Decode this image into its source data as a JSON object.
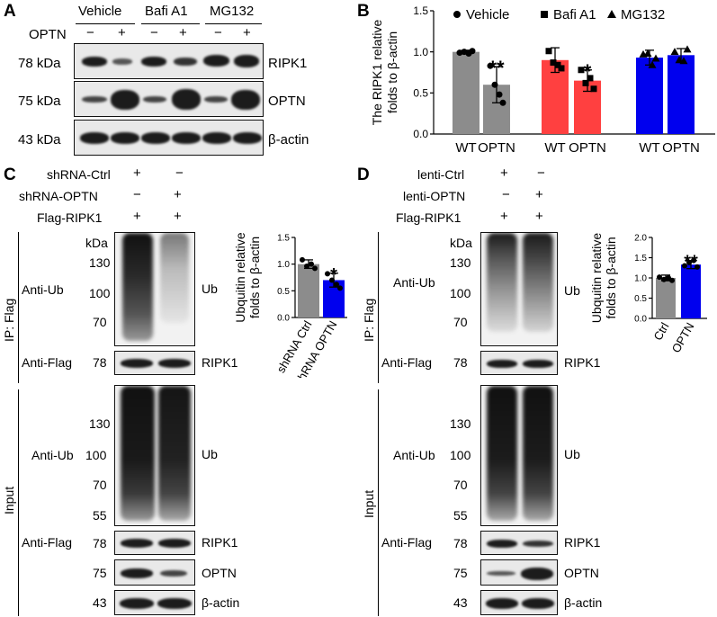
{
  "panels": {
    "A": "A",
    "B": "B",
    "C": "C",
    "D": "D"
  },
  "panelA": {
    "groups": [
      "Vehicle",
      "Bafi A1",
      "MG132"
    ],
    "optn_label": "OPTN",
    "signs": [
      "−",
      "+",
      "−",
      "+",
      "−",
      "+"
    ],
    "rows": [
      {
        "kda": "78 kDa",
        "protein": "RIPK1"
      },
      {
        "kda": "75 kDa",
        "protein": "OPTN"
      },
      {
        "kda": "43 kDa",
        "protein": "β-actin"
      }
    ]
  },
  "panelC": {
    "treatments": [
      {
        "label": "shRNA-Ctrl",
        "signs": [
          "+",
          "−"
        ]
      },
      {
        "label": "shRNA-OPTN",
        "signs": [
          "−",
          "+"
        ]
      },
      {
        "label": "Flag-RIPK1",
        "signs": [
          "+",
          "+"
        ]
      }
    ],
    "ip_label": "IP: Flag",
    "input_label": "Input",
    "kda": "kDa",
    "anti_ub": "Anti-Ub",
    "anti_flag": "Anti-Flag",
    "ip_markers": [
      "130",
      "100",
      "70"
    ],
    "input_markers": [
      "130",
      "100",
      "70",
      "55"
    ],
    "flag_marker": "78",
    "optn_marker": "75",
    "actin_marker": "43",
    "ub": "Ub",
    "ripk1": "RIPK1",
    "optn": "OPTN",
    "actin": "β-actin"
  },
  "panelD": {
    "treatments": [
      {
        "label": "lenti-Ctrl",
        "signs": [
          "+",
          "−"
        ]
      },
      {
        "label": "lenti-OPTN",
        "signs": [
          "−",
          "+"
        ]
      },
      {
        "label": "Flag-RIPK1",
        "signs": [
          "+",
          "+"
        ]
      }
    ],
    "ip_label": "IP: Flag",
    "input_label": "Input",
    "kda": "kDa",
    "anti_ub": "Anti-Ub",
    "anti_flag": "Anti-Flag",
    "ip_markers": [
      "130",
      "100",
      "70"
    ],
    "input_markers": [
      "130",
      "100",
      "70",
      "55"
    ],
    "flag_marker": "78",
    "optn_marker": "75",
    "actin_marker": "43",
    "ub": "Ub",
    "ripk1": "RIPK1",
    "optn": "OPTN",
    "actin": "β-actin"
  },
  "colors": {
    "gray": "#8c8c8c",
    "red": "#ff4040",
    "blue": "#0000ee"
  },
  "chart_data": [
    {
      "id": "B",
      "type": "bar",
      "ylabel": "The RIPK1  relative folds to β-actin",
      "ylim": [
        0,
        1.5
      ],
      "yticks": [
        "0.0",
        "0.5",
        "1.0",
        "1.5"
      ],
      "legend": [
        "Vehicle",
        "Bafi A1",
        "MG132"
      ],
      "legend_markers": [
        "circle",
        "square",
        "triangle"
      ],
      "categories": [
        "WT",
        "OPTN",
        "WT",
        "OPTN",
        "WT",
        "OPTN"
      ],
      "values": [
        1.0,
        0.6,
        0.9,
        0.65,
        0.93,
        0.96
      ],
      "errors": [
        0.02,
        0.22,
        0.15,
        0.13,
        0.09,
        0.08
      ],
      "bar_colors": [
        "#8c8c8c",
        "#8c8c8c",
        "#ff4040",
        "#ff4040",
        "#0000ee",
        "#0000ee"
      ],
      "markers": [
        "circle",
        "circle",
        "square",
        "square",
        "triangle",
        "triangle"
      ],
      "points": [
        [
          0.99,
          1.0,
          0.98,
          1.01
        ],
        [
          0.83,
          0.6,
          0.48,
          0.38
        ],
        [
          1.01,
          0.87,
          0.84,
          0.8
        ],
        [
          0.78,
          0.62,
          0.68,
          0.55
        ],
        [
          0.97,
          0.98,
          0.84,
          0.92
        ],
        [
          1.0,
          0.9,
          0.89,
          1.03
        ]
      ],
      "significance": [
        "",
        "**",
        "",
        "*",
        "",
        ""
      ]
    },
    {
      "id": "C",
      "type": "bar",
      "ylabel": "Ubquitin relative folds to β-actin",
      "ylim": [
        0,
        1.5
      ],
      "yticks": [
        "0.0",
        "0.5",
        "1.0",
        "1.5"
      ],
      "categories": [
        "shRNA Ctrl",
        "shRNA OPTN"
      ],
      "values": [
        1.0,
        0.7
      ],
      "errors": [
        0.08,
        0.13
      ],
      "bar_colors": [
        "#8c8c8c",
        "#0000ee"
      ],
      "points": [
        [
          1.08,
          0.96,
          1.0,
          0.92
        ],
        [
          0.82,
          0.7,
          0.62,
          0.55
        ]
      ],
      "significance": [
        "",
        "*"
      ]
    },
    {
      "id": "D",
      "type": "bar",
      "ylabel": "Ubquitin relative folds to β-actin",
      "ylim": [
        0,
        2.0
      ],
      "yticks": [
        "0.0",
        "0.5",
        "1.0",
        "1.5",
        "2.0"
      ],
      "categories": [
        "Ctrl",
        "OPTN"
      ],
      "values": [
        1.0,
        1.33
      ],
      "errors": [
        0.07,
        0.1
      ],
      "bar_colors": [
        "#8c8c8c",
        "#0000ee"
      ],
      "points": [
        [
          1.02,
          0.96,
          1.0,
          0.94
        ],
        [
          1.3,
          1.38,
          1.43,
          1.27
        ]
      ],
      "significance": [
        "",
        "**"
      ]
    }
  ]
}
